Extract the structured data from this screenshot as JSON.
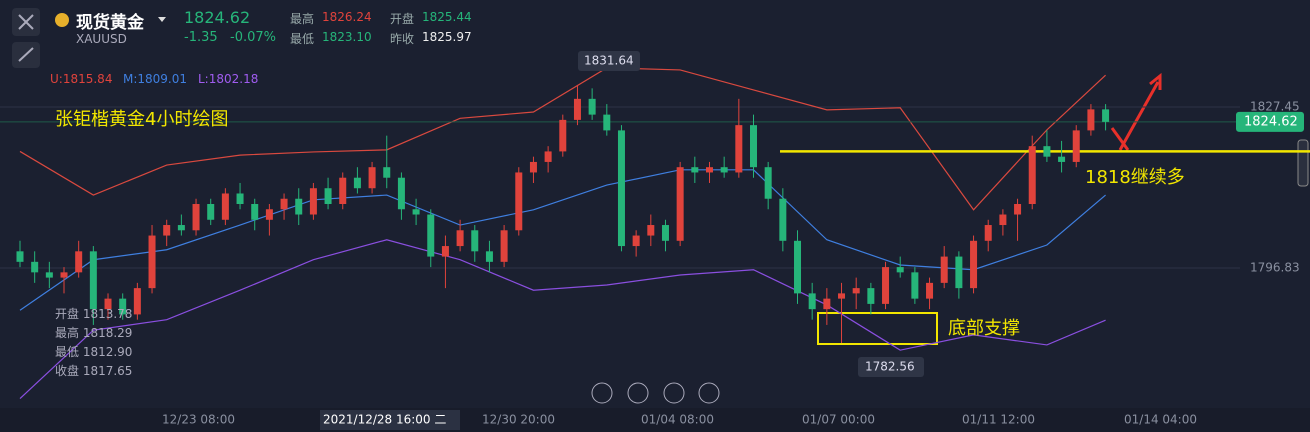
{
  "symbol": {
    "name": "现货黄金",
    "code": "XAUUSD",
    "price": "1824.62",
    "change": "-1.35",
    "change_pct": "-0.07%"
  },
  "stats": [
    {
      "label": "最高",
      "value": "1826.24"
    },
    {
      "label": "开盘",
      "value": "1825.44"
    },
    {
      "label": "最低",
      "value": "1823.10"
    },
    {
      "label": "昨收",
      "value": "1825.97"
    }
  ],
  "indicators": [
    "U:1815.84",
    "M:1809.01",
    "L:1802.18"
  ],
  "ohlc_overlay": [
    "开盘 1813.78",
    "最高 1818.29",
    "最低 1812.90",
    "收盘 1817.65"
  ],
  "chart_data": {
    "type": "candlestick",
    "title": "张钜楷黄金4小时绘图",
    "x_labels": [
      "12/23 08:00",
      "2021/12/28 16:00 二",
      "12/30 20:00",
      "01/04 08:00",
      "01/07 00:00",
      "01/11 12:00",
      "01/14 04:00"
    ],
    "candles": [
      [
        1800,
        1802,
        1797,
        1798
      ],
      [
        1798,
        1800,
        1794,
        1796
      ],
      [
        1796,
        1798,
        1793,
        1795
      ],
      [
        1795,
        1797,
        1792,
        1796
      ],
      [
        1796,
        1802,
        1795,
        1800
      ],
      [
        1800,
        1801,
        1786,
        1789
      ],
      [
        1789,
        1792,
        1787,
        1791
      ],
      [
        1791,
        1792,
        1787,
        1788
      ],
      [
        1788,
        1794,
        1787,
        1793
      ],
      [
        1793,
        1805,
        1792,
        1803
      ],
      [
        1803,
        1806,
        1801,
        1805
      ],
      [
        1805,
        1807,
        1803,
        1804
      ],
      [
        1804,
        1810,
        1803,
        1809
      ],
      [
        1809,
        1810,
        1805,
        1806
      ],
      [
        1806,
        1812,
        1805,
        1811
      ],
      [
        1811,
        1813,
        1808,
        1809
      ],
      [
        1809,
        1810,
        1804,
        1806
      ],
      [
        1806,
        1809,
        1803,
        1808
      ],
      [
        1808,
        1811,
        1806,
        1810
      ],
      [
        1810,
        1812,
        1805,
        1807
      ],
      [
        1807,
        1813,
        1806,
        1812
      ],
      [
        1812,
        1814,
        1808,
        1809
      ],
      [
        1809,
        1815,
        1808,
        1814
      ],
      [
        1814,
        1816,
        1811,
        1812
      ],
      [
        1812,
        1817,
        1811,
        1816
      ],
      [
        1816,
        1822,
        1812,
        1814
      ],
      [
        1814,
        1815,
        1806,
        1808
      ],
      [
        1808,
        1810,
        1805,
        1807
      ],
      [
        1807,
        1808,
        1797,
        1799
      ],
      [
        1799,
        1803,
        1793,
        1801
      ],
      [
        1801,
        1806,
        1800,
        1804
      ],
      [
        1804,
        1805,
        1798,
        1800
      ],
      [
        1800,
        1802,
        1796,
        1798
      ],
      [
        1798,
        1805,
        1797,
        1804
      ],
      [
        1804,
        1816,
        1803,
        1815
      ],
      [
        1815,
        1818,
        1813,
        1817
      ],
      [
        1817,
        1820,
        1815,
        1819
      ],
      [
        1819,
        1826,
        1818,
        1825
      ],
      [
        1825,
        1831.64,
        1824,
        1829
      ],
      [
        1829,
        1831,
        1825,
        1826
      ],
      [
        1826,
        1828,
        1822,
        1823
      ],
      [
        1823,
        1824,
        1800,
        1801
      ],
      [
        1801,
        1804,
        1799,
        1803
      ],
      [
        1803,
        1807,
        1801,
        1805
      ],
      [
        1805,
        1806,
        1800,
        1802
      ],
      [
        1802,
        1817,
        1801,
        1816
      ],
      [
        1816,
        1818,
        1813,
        1815
      ],
      [
        1815,
        1817,
        1813,
        1816
      ],
      [
        1816,
        1818,
        1814,
        1815
      ],
      [
        1815,
        1829,
        1814,
        1824
      ],
      [
        1824,
        1826,
        1814,
        1816
      ],
      [
        1816,
        1817,
        1808,
        1810
      ],
      [
        1810,
        1812,
        1800,
        1802
      ],
      [
        1802,
        1804,
        1790,
        1792
      ],
      [
        1792,
        1794,
        1787,
        1789
      ],
      [
        1789,
        1793,
        1786,
        1791
      ],
      [
        1791,
        1794,
        1782.56,
        1792
      ],
      [
        1792,
        1795,
        1789,
        1793
      ],
      [
        1793,
        1794,
        1788,
        1790
      ],
      [
        1790,
        1798,
        1789,
        1797
      ],
      [
        1797,
        1799,
        1795,
        1796
      ],
      [
        1796,
        1797,
        1790,
        1791
      ],
      [
        1791,
        1795,
        1789,
        1794
      ],
      [
        1794,
        1801,
        1793,
        1799
      ],
      [
        1799,
        1800,
        1791,
        1793
      ],
      [
        1793,
        1803,
        1792,
        1802
      ],
      [
        1802,
        1806,
        1800,
        1805
      ],
      [
        1805,
        1808,
        1803,
        1807
      ],
      [
        1807,
        1810,
        1802,
        1809
      ],
      [
        1809,
        1822,
        1808,
        1820
      ],
      [
        1820,
        1823,
        1817,
        1818
      ],
      [
        1818,
        1821,
        1815,
        1817
      ],
      [
        1817,
        1824,
        1816,
        1823
      ],
      [
        1823,
        1828,
        1822,
        1827
      ],
      [
        1827,
        1828,
        1823,
        1824.62
      ]
    ],
    "up_color": "#e0433c",
    "down_color": "#26b57a",
    "series": [
      {
        "color": "#d9493f",
        "x": [
          0,
          5,
          10,
          15,
          20,
          25,
          30,
          35,
          40,
          45,
          50,
          55,
          60,
          65,
          70,
          74
        ],
        "values": [
          1819,
          1810.7,
          1816.4,
          1818.3,
          1818.9,
          1819.3,
          1825.3,
          1826.5,
          1834.9,
          1834.5,
          1830.7,
          1826.9,
          1827.3,
          1807.9,
          1823.1,
          1833.5
        ]
      },
      {
        "color": "#3f7fe0",
        "x": [
          0,
          5,
          10,
          15,
          20,
          25,
          30,
          35,
          40,
          45,
          50,
          55,
          60,
          65,
          70,
          74
        ],
        "values": [
          1788.8,
          1798.4,
          1800.3,
          1805,
          1809.8,
          1810.7,
          1805,
          1807.9,
          1812.6,
          1815.5,
          1815.5,
          1802.2,
          1797.4,
          1796.5,
          1801.2,
          1810.7
        ]
      },
      {
        "color": "#8a4fe0",
        "x": [
          0,
          5,
          10,
          15,
          20,
          25,
          30,
          35,
          40,
          45,
          50,
          55,
          60,
          65,
          70,
          74
        ],
        "values": [
          1772,
          1785,
          1787,
          1792.6,
          1798.4,
          1802.2,
          1798.4,
          1792.6,
          1793.6,
          1795.5,
          1796.5,
          1789.8,
          1781.2,
          1784.1,
          1782.2,
          1786.9
        ]
      }
    ],
    "ylim": [
      1770.2,
      1847.8
    ],
    "yticks": [
      1827.45,
      1796.83
    ],
    "last_price": 1824.62,
    "high_label": 1831.64,
    "low_label": 1782.56,
    "level": 1819,
    "annotations": [
      "1818继续多",
      "底部支撑"
    ]
  }
}
